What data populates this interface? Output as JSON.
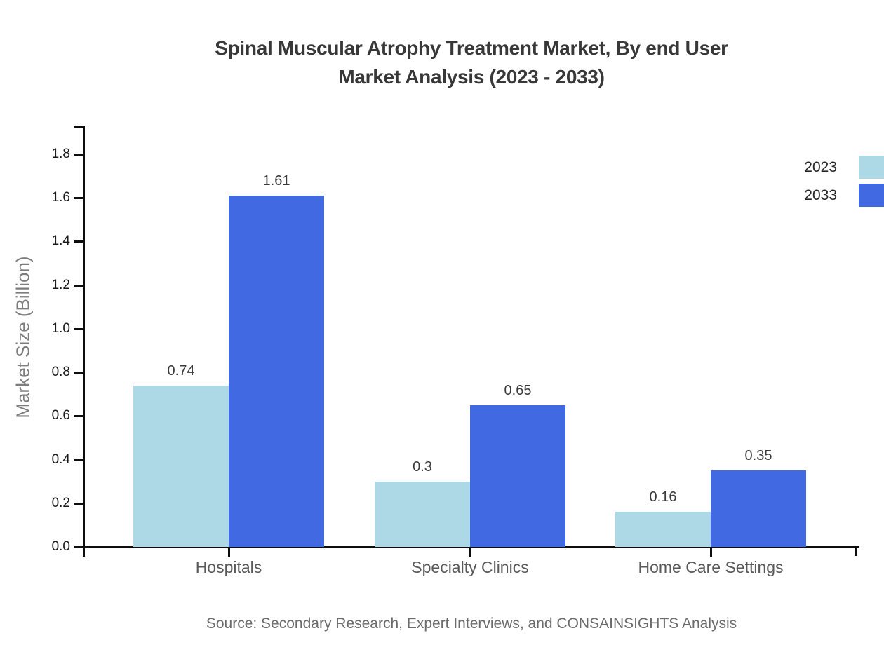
{
  "title": {
    "line1": "Spinal Muscular Atrophy Treatment Market, By end User",
    "line2": "Market Analysis (2023 - 2033)"
  },
  "chart_data": {
    "type": "bar",
    "title": "Spinal Muscular Atrophy Treatment Market, By end User Market Analysis (2023 - 2033)",
    "categories": [
      "Hospitals",
      "Specialty Clinics",
      "Home Care Settings"
    ],
    "series": [
      {
        "name": "2023",
        "color": "#ADD8E6",
        "values": [
          0.74,
          0.3,
          0.16
        ]
      },
      {
        "name": "2033",
        "color": "#4169E1",
        "values": [
          1.61,
          0.65,
          0.35
        ]
      }
    ],
    "xlabel": "",
    "ylabel": "Market Size (Billion)",
    "ylim": [
      0,
      1.93
    ],
    "yticks": [
      0.0,
      0.2,
      0.4,
      0.6,
      0.8,
      1.0,
      1.2,
      1.4,
      1.6,
      1.8
    ],
    "grid": false,
    "value_labels": true,
    "legend_position": "top-right"
  },
  "source": "Source: Secondary Research, Expert Interviews, and CONSAINSIGHTS Analysis"
}
